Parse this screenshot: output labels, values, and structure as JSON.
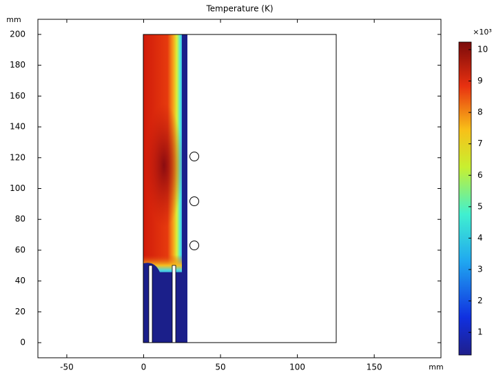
{
  "chart_data": {
    "type": "surface",
    "title": "Temperature (K)",
    "x_label": "mm",
    "y_label": "mm",
    "xlim": [
      -68.8,
      193.4
    ],
    "xticks": [
      -50,
      0,
      50,
      100,
      150
    ],
    "ylim": [
      -9.8,
      209.8
    ],
    "yticks": [
      0,
      20,
      40,
      60,
      80,
      100,
      120,
      140,
      160,
      180,
      200
    ],
    "colorbar": {
      "multiplier": "×10³",
      "lim": [
        0.28,
        10.24
      ],
      "ticks": [
        1,
        2,
        3,
        4,
        5,
        6,
        7,
        8,
        9,
        10
      ],
      "colormap": "jet"
    }
  }
}
